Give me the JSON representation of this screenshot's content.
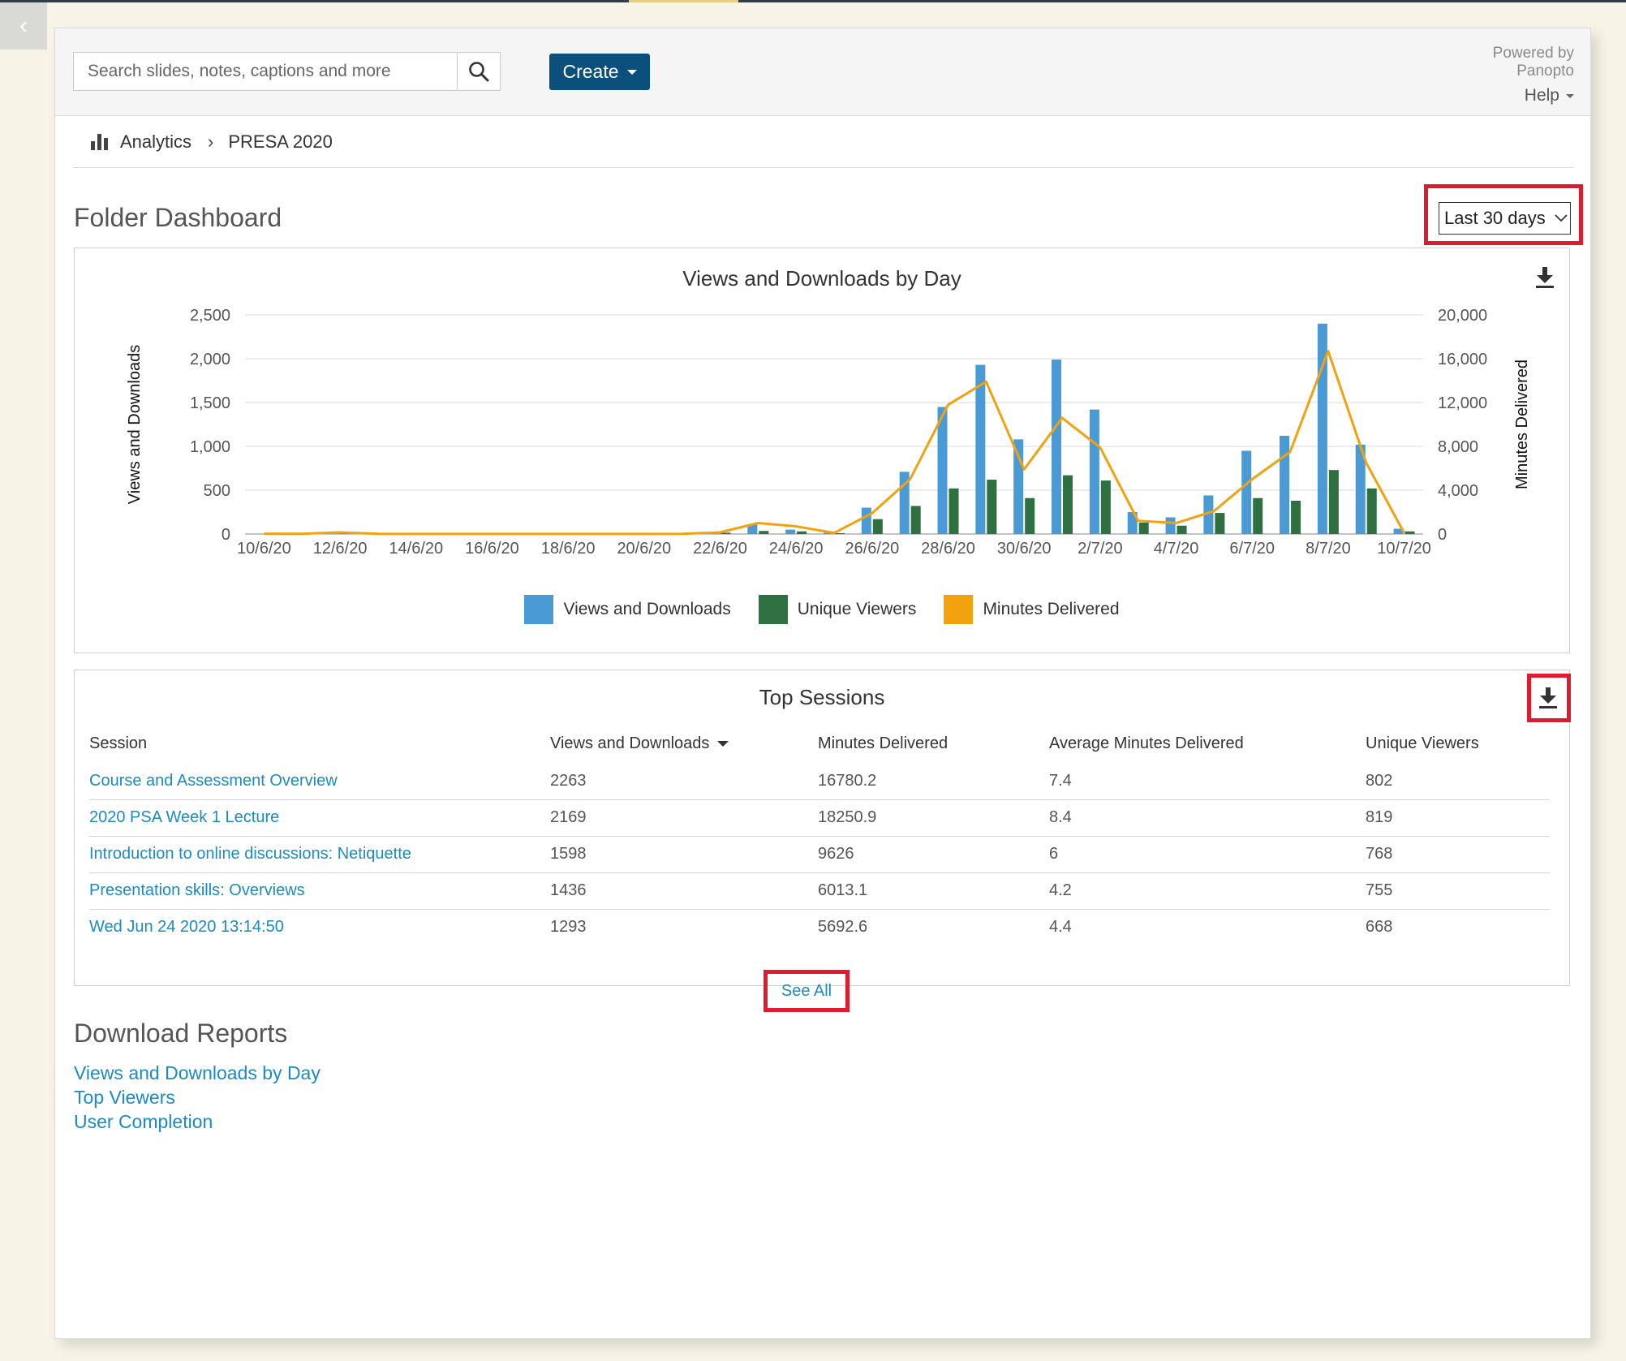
{
  "header": {
    "search_placeholder": "Search slides, notes, captions and more",
    "create_label": "Create",
    "powered_by_line1": "Powered by",
    "powered_by_line2": "Panopto",
    "help_label": "Help"
  },
  "breadcrumb": {
    "analytics": "Analytics",
    "folder": "PRESA 2020"
  },
  "page": {
    "title": "Folder Dashboard",
    "range_selected": "Last 30 days"
  },
  "chart_data": {
    "type": "bar",
    "title": "Views and Downloads by Day",
    "ylabel": "Views and Downloads",
    "y2label": "Minutes Delivered",
    "ylim": [
      0,
      2500
    ],
    "y2lim": [
      0,
      20000
    ],
    "yticks": [
      "0",
      "500",
      "1,000",
      "1,500",
      "2,000",
      "2,500"
    ],
    "y2ticks": [
      "0",
      "4,000",
      "8,000",
      "12,000",
      "16,000",
      "20,000"
    ],
    "xticks": [
      "10/6/20",
      "12/6/20",
      "14/6/20",
      "16/6/20",
      "18/6/20",
      "20/6/20",
      "22/6/20",
      "24/6/20",
      "26/6/20",
      "28/6/20",
      "30/6/20",
      "2/7/20",
      "4/7/20",
      "6/7/20",
      "8/7/20",
      "10/7/20"
    ],
    "categories": [
      "10/6/20",
      "11/6/20",
      "12/6/20",
      "13/6/20",
      "14/6/20",
      "15/6/20",
      "16/6/20",
      "17/6/20",
      "18/6/20",
      "19/6/20",
      "20/6/20",
      "21/6/20",
      "22/6/20",
      "23/6/20",
      "24/6/20",
      "25/6/20",
      "26/6/20",
      "27/6/20",
      "28/6/20",
      "29/6/20",
      "30/6/20",
      "1/7/20",
      "2/7/20",
      "3/7/20",
      "4/7/20",
      "5/7/20",
      "6/7/20",
      "7/7/20",
      "8/7/20",
      "9/7/20",
      "10/7/20"
    ],
    "series": [
      {
        "name": "Views and Downloads",
        "color": "#4a9ad6",
        "axis": "left",
        "kind": "bar",
        "values": [
          5,
          3,
          10,
          3,
          2,
          2,
          2,
          2,
          3,
          2,
          3,
          5,
          25,
          110,
          50,
          15,
          300,
          710,
          1450,
          1930,
          1080,
          1990,
          1420,
          250,
          190,
          440,
          950,
          1120,
          2400,
          1020,
          60
        ]
      },
      {
        "name": "Unique Viewers",
        "color": "#2f7040",
        "axis": "left",
        "kind": "bar",
        "values": [
          2,
          1,
          4,
          1,
          1,
          1,
          1,
          1,
          1,
          1,
          1,
          2,
          15,
          35,
          30,
          10,
          170,
          320,
          520,
          620,
          410,
          670,
          610,
          130,
          95,
          240,
          410,
          380,
          730,
          520,
          30
        ]
      },
      {
        "name": "Minutes Delivered",
        "color": "#f2a10f",
        "axis": "right",
        "kind": "line",
        "values": [
          30,
          20,
          150,
          20,
          10,
          10,
          10,
          10,
          10,
          10,
          10,
          20,
          150,
          1000,
          700,
          100,
          1900,
          5000,
          11800,
          13900,
          5900,
          10600,
          7900,
          1200,
          1000,
          2100,
          5000,
          7500,
          16700,
          6500,
          100
        ]
      }
    ]
  },
  "top_sessions": {
    "title": "Top Sessions",
    "columns": [
      "Session",
      "Views and Downloads",
      "Minutes Delivered",
      "Average Minutes Delivered",
      "Unique Viewers"
    ],
    "rows": [
      {
        "session": "Course and Assessment Overview",
        "views": "2263",
        "minutes": "16780.2",
        "avg": "7.4",
        "viewers": "802"
      },
      {
        "session": "2020 PSA Week 1 Lecture",
        "views": "2169",
        "minutes": "18250.9",
        "avg": "8.4",
        "viewers": "819"
      },
      {
        "session": "Introduction to online discussions: Netiquette",
        "views": "1598",
        "minutes": "9626",
        "avg": "6",
        "viewers": "768"
      },
      {
        "session": "Presentation skills: Overviews",
        "views": "1436",
        "minutes": "6013.1",
        "avg": "4.2",
        "viewers": "755"
      },
      {
        "session": "Wed Jun 24 2020 13:14:50",
        "views": "1293",
        "minutes": "5692.6",
        "avg": "4.4",
        "viewers": "668"
      }
    ],
    "see_all": "See All"
  },
  "reports": {
    "title": "Download Reports",
    "links": [
      "Views and Downloads by Day",
      "Top Viewers",
      "User Completion"
    ]
  },
  "colors": {
    "brand_button": "#0b4f7c",
    "link": "#1b8bc2",
    "highlight": "#e01b2f"
  }
}
